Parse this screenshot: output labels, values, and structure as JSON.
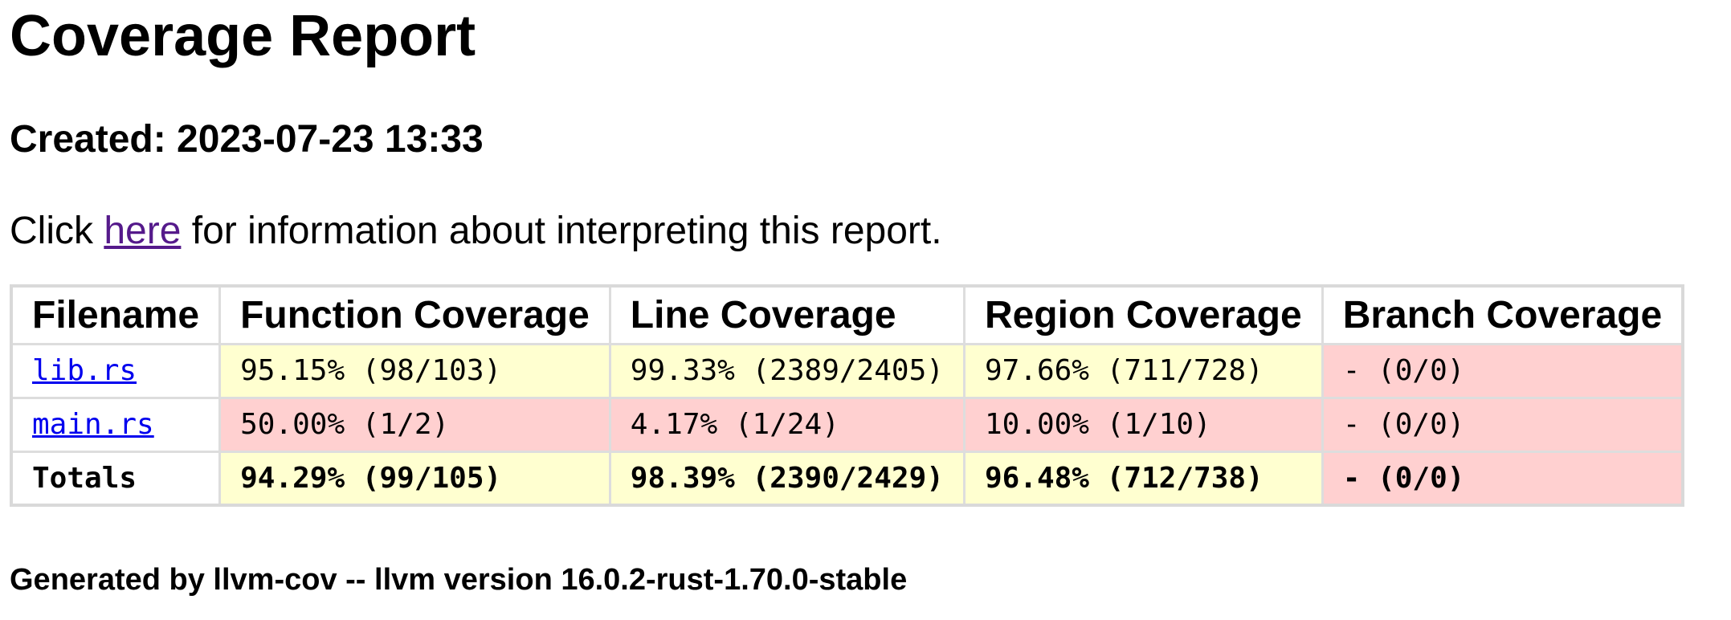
{
  "title": "Coverage Report",
  "created": "Created: 2023-07-23 13:33",
  "info": {
    "prefix": "Click ",
    "link": "here",
    "suffix": " for information about interpreting this report."
  },
  "table": {
    "headers": [
      "Filename",
      "Function Coverage",
      "Line Coverage",
      "Region Coverage",
      "Branch Coverage"
    ],
    "rows": [
      {
        "file": "lib.rs",
        "function": "95.15% (98/103)",
        "line": "99.33% (2389/2405)",
        "region": "97.66% (711/728)",
        "branch": "- (0/0)"
      },
      {
        "file": "main.rs",
        "function": "50.00% (1/2)",
        "line": "4.17% (1/24)",
        "region": "10.00% (1/10)",
        "branch": "- (0/0)"
      }
    ],
    "totals": {
      "label": "Totals",
      "function": "94.29% (99/105)",
      "line": "98.39% (2390/2429)",
      "region": "96.48% (712/738)",
      "branch": "- (0/0)"
    }
  },
  "colors": {
    "high": "#ffffd0",
    "low": "#ffd0d0",
    "link": "#0000ee",
    "visited_link": "#551a8b"
  },
  "footer": "Generated by llvm-cov -- llvm version 16.0.2-rust-1.70.0-stable"
}
